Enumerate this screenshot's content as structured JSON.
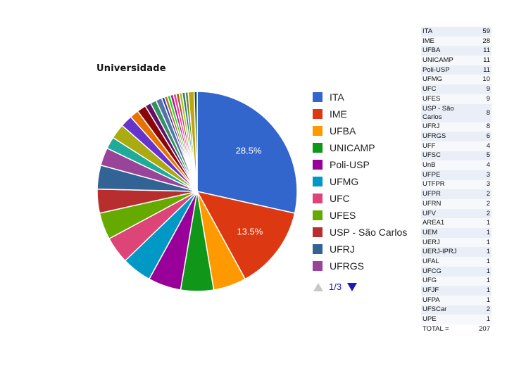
{
  "chart_data": {
    "type": "pie",
    "title": "Universidade",
    "legend_position": "right",
    "slices": [
      {
        "label": "ITA",
        "value": 59,
        "color": "#3366cc"
      },
      {
        "label": "IME",
        "value": 28,
        "color": "#dc3912"
      },
      {
        "label": "UFBA",
        "value": 11,
        "color": "#ff9900"
      },
      {
        "label": "UNICAMP",
        "value": 11,
        "color": "#109618"
      },
      {
        "label": "Poli-USP",
        "value": 11,
        "color": "#990099"
      },
      {
        "label": "UFMG",
        "value": 10,
        "color": "#0099c6"
      },
      {
        "label": "UFC",
        "value": 9,
        "color": "#dd4477"
      },
      {
        "label": "UFES",
        "value": 9,
        "color": "#66aa00"
      },
      {
        "label": "USP - São Carlos",
        "value": 8,
        "color": "#b82e2e"
      },
      {
        "label": "UFRJ",
        "value": 8,
        "color": "#316395"
      },
      {
        "label": "UFRGS",
        "value": 6,
        "color": "#994499"
      },
      {
        "label": "UFF",
        "value": 4,
        "color": "#22aa99"
      },
      {
        "label": "UFSC",
        "value": 5,
        "color": "#aaaa11"
      },
      {
        "label": "UnB",
        "value": 4,
        "color": "#6633cc"
      },
      {
        "label": "UFPE",
        "value": 3,
        "color": "#e67300"
      },
      {
        "label": "UTFPR",
        "value": 3,
        "color": "#8b0707"
      },
      {
        "label": "UFPR",
        "value": 2,
        "color": "#651067"
      },
      {
        "label": "UFRN",
        "value": 2,
        "color": "#329262"
      },
      {
        "label": "UFV",
        "value": 2,
        "color": "#5574a6"
      },
      {
        "label": "AREA1",
        "value": 1,
        "color": "#3b3eac"
      },
      {
        "label": "UEM",
        "value": 1,
        "color": "#b77322"
      },
      {
        "label": "UERJ",
        "value": 1,
        "color": "#16d620"
      },
      {
        "label": "UERJ-IPRJ",
        "value": 1,
        "color": "#b91383"
      },
      {
        "label": "UFAL",
        "value": 1,
        "color": "#f4359e"
      },
      {
        "label": "UFCG",
        "value": 1,
        "color": "#9c5935"
      },
      {
        "label": "UFG",
        "value": 1,
        "color": "#a9c413"
      },
      {
        "label": "UFJF",
        "value": 1,
        "color": "#2a778d"
      },
      {
        "label": "UFPA",
        "value": 1,
        "color": "#668d1c"
      },
      {
        "label": "UFSCar",
        "value": 2,
        "color": "#bea413"
      },
      {
        "label": "UPE",
        "value": 1,
        "color": "#0c5922"
      }
    ],
    "data_labels": [
      {
        "slice": "ITA",
        "text": "28.5%"
      },
      {
        "slice": "IME",
        "text": "13.5%"
      }
    ],
    "legend_entries": [
      "ITA",
      "IME",
      "UFBA",
      "UNICAMP",
      "Poli-USP",
      "UFMG",
      "UFC",
      "UFES",
      "USP - São Carlos",
      "UFRJ",
      "UFRGS"
    ],
    "legend_pager": {
      "text": "1/3"
    }
  },
  "table": {
    "rows": [
      {
        "name": "ITA",
        "value": "59"
      },
      {
        "name": "IME",
        "value": "28"
      },
      {
        "name": "UFBA",
        "value": "11"
      },
      {
        "name": "UNICAMP",
        "value": "11"
      },
      {
        "name": "Poli-USP",
        "value": "11"
      },
      {
        "name": "UFMG",
        "value": "10"
      },
      {
        "name": "UFC",
        "value": "9"
      },
      {
        "name": "UFES",
        "value": "9"
      },
      {
        "name": "USP - São Carlos",
        "value": "8"
      },
      {
        "name": "UFRJ",
        "value": "8"
      },
      {
        "name": "UFRGS",
        "value": "6"
      },
      {
        "name": "UFF",
        "value": "4"
      },
      {
        "name": "UFSC",
        "value": "5"
      },
      {
        "name": "UnB",
        "value": "4"
      },
      {
        "name": "UFPE",
        "value": "3"
      },
      {
        "name": "UTFPR",
        "value": "3"
      },
      {
        "name": "UFPR",
        "value": "2"
      },
      {
        "name": "UFRN",
        "value": "2"
      },
      {
        "name": "UFV",
        "value": "2"
      },
      {
        "name": "AREA1",
        "value": "1"
      },
      {
        "name": "UEM",
        "value": "1"
      },
      {
        "name": "UERJ",
        "value": "1"
      },
      {
        "name": "UERJ-IPRJ",
        "value": "1"
      },
      {
        "name": "UFAL",
        "value": "1"
      },
      {
        "name": "UFCG",
        "value": "1"
      },
      {
        "name": "UFG",
        "value": "1"
      },
      {
        "name": "UFJF",
        "value": "1"
      },
      {
        "name": "UFPA",
        "value": "1"
      },
      {
        "name": "UFSCar",
        "value": "2"
      },
      {
        "name": "UPE",
        "value": "1"
      }
    ],
    "total_label": "TOTAL =",
    "total_value": "207"
  }
}
